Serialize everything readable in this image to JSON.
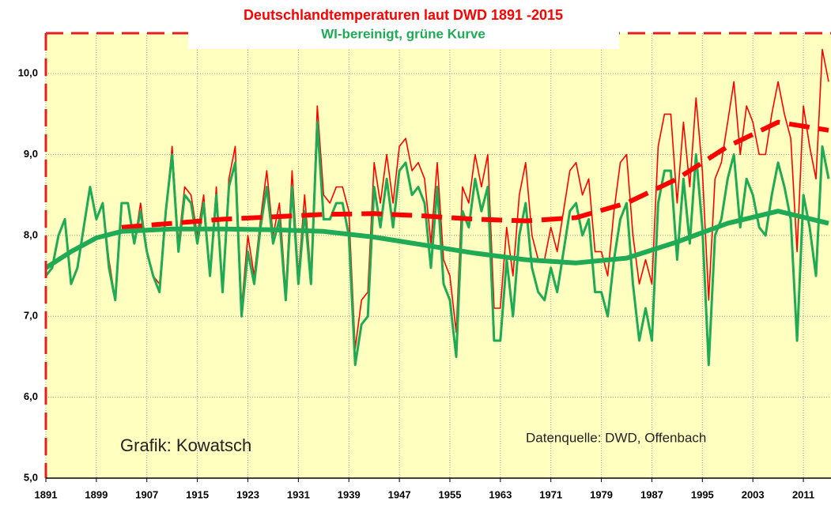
{
  "chart_data": {
    "type": "line",
    "title": "Deutschlandtemperaturen laut DWD 1891 -2015",
    "subtitle": "WI-bereinigt, grüne Kurve",
    "annotations": [
      "Grafik: Kowatsch",
      "Datenquelle: DWD, Offenbach"
    ],
    "x": [
      1891,
      1892,
      1893,
      1894,
      1895,
      1896,
      1897,
      1898,
      1899,
      1900,
      1901,
      1902,
      1903,
      1904,
      1905,
      1906,
      1907,
      1908,
      1909,
      1910,
      1911,
      1912,
      1913,
      1914,
      1915,
      1916,
      1917,
      1918,
      1919,
      1920,
      1921,
      1922,
      1923,
      1924,
      1925,
      1926,
      1927,
      1928,
      1929,
      1930,
      1931,
      1932,
      1933,
      1934,
      1935,
      1936,
      1937,
      1938,
      1939,
      1940,
      1941,
      1942,
      1943,
      1944,
      1945,
      1946,
      1947,
      1948,
      1949,
      1950,
      1951,
      1952,
      1953,
      1954,
      1955,
      1956,
      1957,
      1958,
      1959,
      1960,
      1961,
      1962,
      1963,
      1964,
      1965,
      1966,
      1967,
      1968,
      1969,
      1970,
      1971,
      1972,
      1973,
      1974,
      1975,
      1976,
      1977,
      1978,
      1979,
      1980,
      1981,
      1982,
      1983,
      1984,
      1985,
      1986,
      1987,
      1988,
      1989,
      1990,
      1991,
      1992,
      1993,
      1994,
      1995,
      1996,
      1997,
      1998,
      1999,
      2000,
      2001,
      2002,
      2003,
      2004,
      2005,
      2006,
      2007,
      2008,
      2009,
      2010,
      2011,
      2012,
      2013,
      2014,
      2015
    ],
    "series": [
      {
        "color": "#ff0000",
        "width": 1.6,
        "values": [
          7.5,
          7.6,
          8.0,
          8.2,
          7.4,
          7.6,
          8.1,
          8.6,
          8.2,
          8.4,
          7.7,
          7.2,
          8.4,
          8.4,
          7.9,
          8.4,
          7.8,
          7.5,
          7.4,
          8.3,
          9.1,
          7.9,
          8.6,
          8.5,
          8.0,
          8.5,
          7.5,
          8.6,
          7.3,
          8.7,
          9.1,
          7.1,
          8.0,
          7.5,
          8.2,
          8.8,
          8.0,
          8.4,
          7.3,
          8.8,
          7.5,
          8.5,
          7.5,
          9.6,
          8.5,
          8.4,
          8.6,
          8.6,
          8.3,
          6.6,
          7.2,
          7.3,
          8.9,
          8.4,
          9.0,
          8.4,
          9.1,
          9.2,
          8.8,
          8.9,
          8.7,
          7.9,
          8.9,
          7.7,
          7.5,
          6.8,
          8.6,
          8.4,
          9.0,
          8.6,
          9.0,
          7.1,
          7.1,
          8.1,
          7.5,
          8.5,
          8.9,
          8.0,
          7.7,
          7.7,
          8.1,
          7.8,
          8.3,
          8.8,
          8.9,
          8.5,
          8.7,
          7.8,
          7.8,
          7.5,
          8.3,
          8.9,
          9.0,
          8.0,
          7.4,
          7.7,
          7.4,
          9.1,
          9.5,
          9.5,
          8.4,
          9.4,
          8.6,
          9.7,
          8.8,
          7.2,
          8.7,
          8.9,
          9.4,
          9.9,
          9.0,
          9.6,
          9.4,
          9.0,
          9.0,
          9.5,
          9.9,
          9.5,
          9.2,
          7.8,
          9.6,
          9.1,
          8.7,
          10.3,
          9.9
        ]
      },
      {
        "color": "#1faa55",
        "width": 3,
        "values": [
          7.5,
          7.6,
          8.0,
          8.2,
          7.4,
          7.6,
          8.1,
          8.6,
          8.2,
          8.4,
          7.6,
          7.2,
          8.4,
          8.4,
          7.9,
          8.3,
          7.8,
          7.5,
          7.3,
          8.3,
          9.0,
          7.8,
          8.5,
          8.4,
          7.9,
          8.4,
          7.5,
          8.5,
          7.3,
          8.6,
          8.9,
          7.0,
          7.8,
          7.4,
          8.1,
          8.6,
          7.9,
          8.2,
          7.2,
          8.6,
          7.4,
          8.3,
          7.4,
          9.4,
          8.2,
          8.2,
          8.4,
          8.4,
          8.0,
          6.4,
          6.9,
          7.0,
          8.6,
          8.1,
          8.7,
          8.1,
          8.8,
          8.9,
          8.5,
          8.6,
          8.4,
          7.6,
          8.6,
          7.4,
          7.2,
          6.5,
          8.3,
          8.1,
          8.7,
          8.3,
          8.6,
          6.7,
          6.7,
          7.7,
          7.0,
          8.0,
          8.4,
          7.6,
          7.3,
          7.2,
          7.6,
          7.3,
          7.8,
          8.3,
          8.4,
          8.0,
          8.2,
          7.3,
          7.3,
          7.0,
          7.7,
          8.2,
          8.4,
          7.4,
          6.7,
          7.1,
          6.7,
          8.4,
          8.8,
          8.8,
          7.7,
          8.7,
          7.9,
          9.0,
          8.1,
          6.4,
          8.0,
          8.2,
          8.7,
          9.0,
          8.1,
          8.7,
          8.5,
          8.1,
          8.0,
          8.5,
          8.9,
          8.6,
          8.2,
          6.7,
          8.5,
          8.1,
          7.5,
          9.1,
          8.7
        ]
      },
      {
        "color": "#ff0000",
        "width": 6,
        "style": "dashed",
        "x": [
          1903,
          1911,
          1919,
          1927,
          1935,
          1943,
          1951,
          1959,
          1967,
          1975,
          1983,
          1991,
          1999,
          2007,
          2015
        ],
        "values": [
          8.1,
          8.15,
          8.2,
          8.23,
          8.26,
          8.27,
          8.24,
          8.2,
          8.18,
          8.22,
          8.4,
          8.7,
          9.1,
          9.4,
          9.3
        ]
      },
      {
        "color": "#1faa55",
        "width": 6,
        "x": [
          1891,
          1895,
          1899,
          1903,
          1911,
          1919,
          1927,
          1935,
          1943,
          1951,
          1959,
          1967,
          1975,
          1983,
          1991,
          1999,
          2007,
          2015
        ],
        "values": [
          7.6,
          7.8,
          7.97,
          8.05,
          8.08,
          8.08,
          8.07,
          8.05,
          7.98,
          7.88,
          7.78,
          7.7,
          7.66,
          7.72,
          7.92,
          8.15,
          8.3,
          8.15
        ]
      }
    ],
    "xlim": [
      1891,
      2015
    ],
    "xticks": [
      1891,
      1899,
      1907,
      1915,
      1923,
      1931,
      1939,
      1947,
      1955,
      1963,
      1971,
      1979,
      1987,
      1995,
      2003,
      2011
    ],
    "ylim": [
      5,
      10.5
    ],
    "yticks": [
      {
        "value": 5,
        "label": "5,0"
      },
      {
        "value": 6,
        "label": "6,0"
      },
      {
        "value": 7,
        "label": "7,0"
      },
      {
        "value": 8,
        "label": "8,0"
      },
      {
        "value": 9,
        "label": "9,0"
      },
      {
        "value": 10,
        "label": "10,0"
      }
    ],
    "grid": true
  }
}
